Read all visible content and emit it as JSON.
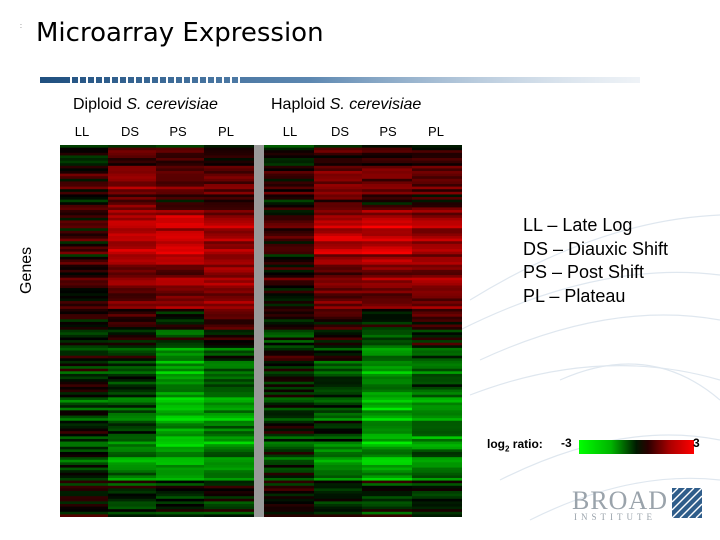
{
  "slide": {
    "title": "Microarray Expression",
    "corner_mark": ":"
  },
  "groups": [
    {
      "label": "Diploid ",
      "species": "S. cerevisiae",
      "columns": [
        "LL",
        "DS",
        "PS",
        "PL"
      ]
    },
    {
      "label": "Haploid ",
      "species": "S. cerevisiae",
      "columns": [
        "LL",
        "DS",
        "PS",
        "PL"
      ]
    }
  ],
  "axis": {
    "y_label": "Genes"
  },
  "legend": {
    "items": [
      "LL – Late Log",
      "DS – Diauxic Shift",
      "PS – Post Shift",
      "PL – Plateau"
    ]
  },
  "color_scale": {
    "label_prefix": "log",
    "label_sub": "2",
    "label_suffix": " ratio:",
    "min": "-3",
    "max": "3",
    "colors": {
      "low": "#00ff00",
      "mid": "#000000",
      "high": "#ff0000"
    }
  },
  "logo": {
    "name": "BROAD",
    "sub": "INSTITUTE"
  },
  "heatmap_profile": [
    {
      "rows": 10,
      "cols": [
        -0.2,
        0.5,
        0.4,
        0.3
      ]
    },
    {
      "rows": 15,
      "cols": [
        0.3,
        1.1,
        0.7,
        0.6
      ]
    },
    {
      "rows": 20,
      "cols": [
        0.3,
        1.8,
        2.0,
        1.5
      ]
    },
    {
      "rows": 18,
      "cols": [
        0.2,
        1.0,
        1.2,
        1.4
      ]
    },
    {
      "rows": 15,
      "cols": [
        -0.2,
        0.2,
        -0.3,
        0.4
      ]
    },
    {
      "rows": 18,
      "cols": [
        -0.3,
        -0.6,
        -1.6,
        -1.0
      ]
    },
    {
      "rows": 20,
      "cols": [
        -0.4,
        -0.8,
        -2.0,
        -1.5
      ]
    },
    {
      "rows": 13,
      "cols": [
        -0.4,
        -1.3,
        -1.6,
        -1.2
      ]
    },
    {
      "rows": 14,
      "cols": [
        -0.2,
        -0.5,
        -0.6,
        -0.4
      ]
    }
  ]
}
